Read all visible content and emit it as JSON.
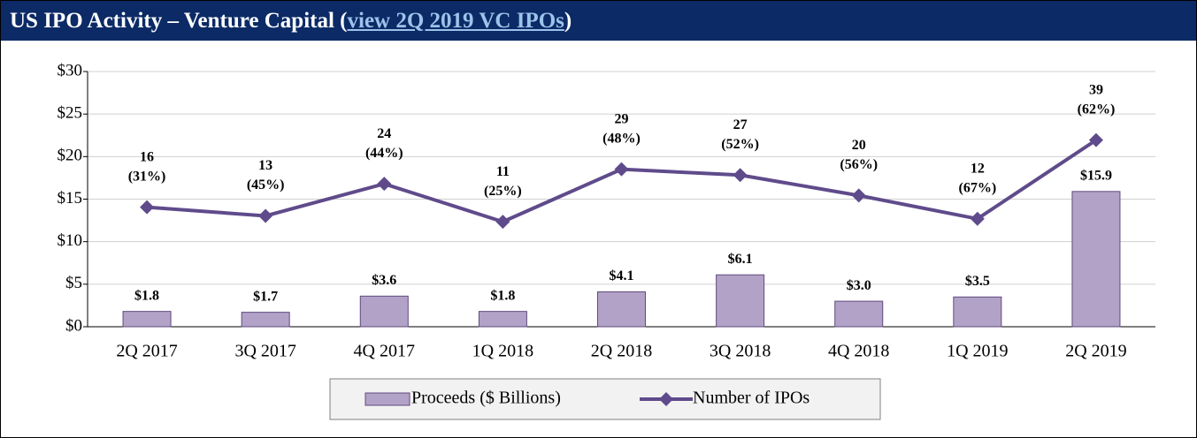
{
  "header": {
    "title_prefix": "US IPO Activity – Venture Capital (",
    "link": "view 2Q 2019 VC IPOs",
    "title_suffix": ")"
  },
  "chart_data": {
    "type": "bar",
    "categories": [
      "2Q 2017",
      "3Q 2017",
      "4Q 2017",
      "1Q 2018",
      "2Q 2018",
      "3Q 2018",
      "4Q 2018",
      "1Q 2019",
      "2Q 2019"
    ],
    "series": [
      {
        "name": "Proceeds ($ Billions)",
        "type": "bar",
        "color": "#b3a2c7",
        "edge": "#5e4a7e",
        "values": [
          1.8,
          1.7,
          3.6,
          1.8,
          4.1,
          6.1,
          3.0,
          3.5,
          15.9
        ],
        "value_labels": [
          "$1.8",
          "$1.7",
          "$3.6",
          "$1.8",
          "$4.1",
          "$6.1",
          "$3.0",
          "$3.5",
          "$15.9"
        ]
      },
      {
        "name": "Number of IPOs",
        "type": "line",
        "axis": "y2",
        "color": "#5f4b8b",
        "values": [
          16,
          13,
          24,
          11,
          29,
          27,
          20,
          12,
          39
        ],
        "share_labels": [
          "(31%)",
          "(45%)",
          "(44%)",
          "(25%)",
          "(48%)",
          "(52%)",
          "(56%)",
          "(67%)",
          "(62%)"
        ]
      }
    ],
    "ylim": [
      0,
      30
    ],
    "yticks": [
      {
        "value": 0,
        "label": "$0"
      },
      {
        "value": 5,
        "label": "$5"
      },
      {
        "value": 10,
        "label": "$10"
      },
      {
        "value": 15,
        "label": "$15"
      },
      {
        "value": 20,
        "label": "$20"
      },
      {
        "value": 25,
        "label": "$25"
      },
      {
        "value": 30,
        "label": "$30"
      }
    ],
    "y2lim": [
      -25,
      62.5
    ],
    "grid": true,
    "legend": "bottom"
  }
}
